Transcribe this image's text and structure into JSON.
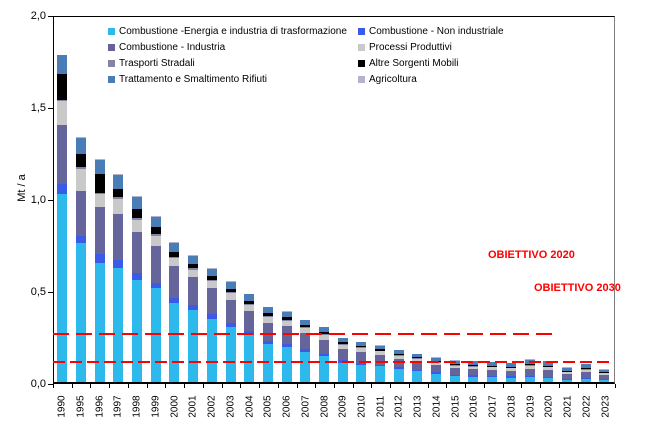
{
  "chart_data": {
    "type": "bar",
    "stacked": true,
    "title": "",
    "xlabel": "",
    "ylabel": "Mt / a",
    "ylim": [
      0,
      2.0
    ],
    "ytick_labels": [
      "0,0",
      "0,5",
      "1,0",
      "1,5",
      "2,0"
    ],
    "ytick_values": [
      0,
      0.5,
      1.0,
      1.5,
      2.0
    ],
    "grid": false,
    "legend_position": "top-inside-two-columns",
    "categories": [
      "1990",
      "1995",
      "1996",
      "1997",
      "1998",
      "1999",
      "2000",
      "2001",
      "2002",
      "2003",
      "2004",
      "2005",
      "2006",
      "2007",
      "2008",
      "2009",
      "2010",
      "2011",
      "2012",
      "2013",
      "2014",
      "2015",
      "2016",
      "2017",
      "2018",
      "2019",
      "2020",
      "2021",
      "2022",
      "2023"
    ],
    "series": [
      {
        "name": "Combustione -Energia e industria di trasformazione",
        "color": "#2db9ec",
        "values": [
          1.02,
          0.755,
          0.645,
          0.62,
          0.555,
          0.51,
          0.43,
          0.39,
          0.345,
          0.3,
          0.255,
          0.205,
          0.19,
          0.165,
          0.14,
          0.105,
          0.095,
          0.085,
          0.07,
          0.058,
          0.045,
          0.032,
          0.028,
          0.025,
          0.022,
          0.025,
          0.02,
          0.012,
          0.015,
          0.01
        ]
      },
      {
        "name": "Combustione - Non industriale",
        "color": "#3a5be8",
        "values": [
          0.055,
          0.04,
          0.05,
          0.043,
          0.035,
          0.03,
          0.028,
          0.026,
          0.024,
          0.022,
          0.02,
          0.018,
          0.017,
          0.015,
          0.014,
          0.012,
          0.011,
          0.01,
          0.009,
          0.009,
          0.008,
          0.008,
          0.008,
          0.008,
          0.008,
          0.009,
          0.009,
          0.007,
          0.008,
          0.006
        ]
      },
      {
        "name": "Combustione - Industria",
        "color": "#65659b",
        "values": [
          0.32,
          0.245,
          0.255,
          0.25,
          0.225,
          0.2,
          0.17,
          0.155,
          0.14,
          0.125,
          0.11,
          0.1,
          0.095,
          0.085,
          0.075,
          0.062,
          0.057,
          0.052,
          0.047,
          0.042,
          0.038,
          0.035,
          0.034,
          0.033,
          0.032,
          0.038,
          0.036,
          0.025,
          0.032,
          0.022
        ]
      },
      {
        "name": "Processi Produttivi",
        "color": "#c9c9c9",
        "values": [
          0.13,
          0.12,
          0.07,
          0.08,
          0.065,
          0.055,
          0.045,
          0.04,
          0.038,
          0.036,
          0.034,
          0.032,
          0.03,
          0.028,
          0.026,
          0.022,
          0.021,
          0.019,
          0.017,
          0.016,
          0.015,
          0.014,
          0.014,
          0.014,
          0.013,
          0.016,
          0.015,
          0.011,
          0.013,
          0.01
        ]
      },
      {
        "name": "Trasporti Stradali",
        "color": "#8585a3",
        "values": [
          0.01,
          0.01,
          0.01,
          0.01,
          0.01,
          0.01,
          0.008,
          0.008,
          0.007,
          0.007,
          0.006,
          0.006,
          0.006,
          0.005,
          0.005,
          0.005,
          0.004,
          0.004,
          0.004,
          0.004,
          0.003,
          0.003,
          0.003,
          0.003,
          0.003,
          0.003,
          0.003,
          0.002,
          0.003,
          0.002
        ]
      },
      {
        "name": "Altre Sorgenti Mobili",
        "color": "#000000",
        "values": [
          0.14,
          0.07,
          0.1,
          0.045,
          0.05,
          0.035,
          0.025,
          0.022,
          0.02,
          0.018,
          0.016,
          0.014,
          0.013,
          0.012,
          0.011,
          0.009,
          0.008,
          0.008,
          0.007,
          0.006,
          0.006,
          0.006,
          0.006,
          0.005,
          0.005,
          0.006,
          0.005,
          0.004,
          0.005,
          0.003
        ]
      },
      {
        "name": "Trattamento e Smaltimento Rifiuti",
        "color": "#4a7cb5",
        "values": [
          0.1,
          0.085,
          0.075,
          0.077,
          0.065,
          0.055,
          0.05,
          0.045,
          0.042,
          0.038,
          0.035,
          0.032,
          0.031,
          0.027,
          0.026,
          0.022,
          0.021,
          0.019,
          0.018,
          0.017,
          0.017,
          0.019,
          0.019,
          0.019,
          0.019,
          0.025,
          0.024,
          0.017,
          0.021,
          0.015
        ]
      },
      {
        "name": "Agricoltura",
        "color": "#b3b3ce",
        "values": [
          0.005,
          0.005,
          0.005,
          0.005,
          0.005,
          0.005,
          0.004,
          0.004,
          0.004,
          0.004,
          0.004,
          0.003,
          0.003,
          0.003,
          0.003,
          0.003,
          0.003,
          0.003,
          0.003,
          0.003,
          0.003,
          0.003,
          0.003,
          0.003,
          0.003,
          0.003,
          0.003,
          0.002,
          0.003,
          0.002
        ]
      }
    ],
    "reference_lines": [
      {
        "label": "OBIETTIVO 2020",
        "value": 0.27,
        "color": "#ff0000",
        "style": "dashed"
      },
      {
        "label": "OBIETTIVO 2030",
        "value": 0.12,
        "color": "#ff0000",
        "style": "dashed"
      }
    ]
  }
}
